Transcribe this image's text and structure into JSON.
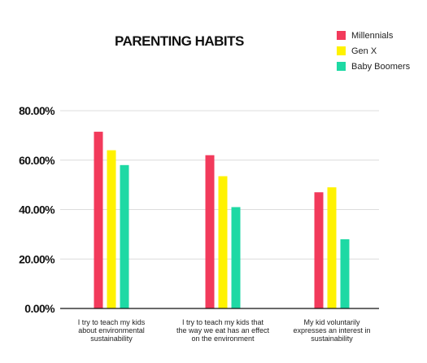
{
  "chart_data": {
    "type": "bar",
    "title": "PARENTING HABITS",
    "xlabel": "",
    "ylabel": "",
    "categories": [
      [
        "I try to teach my kids",
        "about environmental",
        "sustainability"
      ],
      [
        "I try to teach my kids that",
        "the way we eat has an effect",
        "on the environment"
      ],
      [
        "My kid voluntarily",
        "expresses an interest in",
        "sustainability"
      ]
    ],
    "series": [
      {
        "name": "Millennials",
        "color": "#f23a5b",
        "values": [
          71.5,
          62.0,
          47.0
        ]
      },
      {
        "name": "Gen X",
        "color": "#fff200",
        "values": [
          64.0,
          53.5,
          49.0
        ]
      },
      {
        "name": "Baby Boomers",
        "color": "#1ed9a4",
        "values": [
          58.0,
          41.0,
          28.0
        ]
      }
    ],
    "ylim": [
      0,
      80
    ],
    "yticks": [
      0,
      20,
      40,
      60,
      80
    ],
    "ytick_labels": [
      "0.00%",
      "20.00%",
      "40.00%",
      "60.00%",
      "80.00%"
    ],
    "grid": true,
    "legend_position": "top-right"
  }
}
